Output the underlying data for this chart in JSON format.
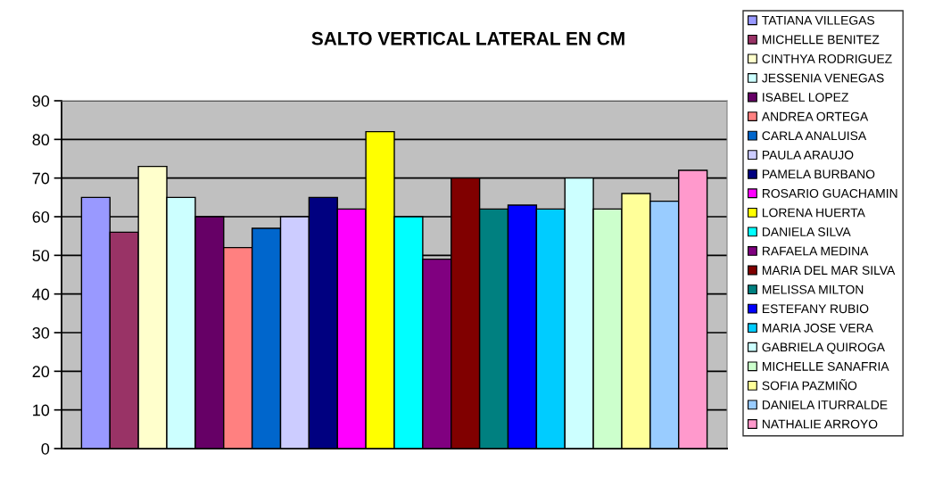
{
  "chart_data": {
    "type": "bar",
    "title": "SALTO VERTICAL LATERAL EN CM",
    "categories": [
      null
    ],
    "ylim": [
      0,
      90
    ],
    "yticks": [
      0,
      10,
      20,
      30,
      40,
      50,
      60,
      70,
      80,
      90
    ],
    "grid": "y",
    "legend": "right",
    "series": [
      {
        "name": "TATIANA VILLEGAS",
        "color": "#9999ff",
        "values": [
          65
        ]
      },
      {
        "name": "MICHELLE BENITEZ",
        "color": "#993366",
        "values": [
          56
        ]
      },
      {
        "name": "CINTHYA RODRIGUEZ",
        "color": "#ffffcc",
        "values": [
          73
        ]
      },
      {
        "name": "JESSENIA VENEGAS",
        "color": "#ccffff",
        "values": [
          65
        ]
      },
      {
        "name": "ISABEL LOPEZ",
        "color": "#660066",
        "values": [
          60
        ]
      },
      {
        "name": "ANDREA ORTEGA",
        "color": "#ff8080",
        "values": [
          52
        ]
      },
      {
        "name": "CARLA ANALUISA",
        "color": "#0066cc",
        "values": [
          57
        ]
      },
      {
        "name": "PAULA ARAUJO",
        "color": "#ccccff",
        "values": [
          60
        ]
      },
      {
        "name": "PAMELA BURBANO",
        "color": "#000080",
        "values": [
          65
        ]
      },
      {
        "name": "ROSARIO GUACHAMIN",
        "color": "#ff00ff",
        "values": [
          62
        ]
      },
      {
        "name": "LORENA HUERTA",
        "color": "#ffff00",
        "values": [
          82
        ]
      },
      {
        "name": "DANIELA SILVA",
        "color": "#00ffff",
        "values": [
          60
        ]
      },
      {
        "name": "RAFAELA MEDINA",
        "color": "#800080",
        "values": [
          49
        ]
      },
      {
        "name": "MARIA DEL MAR SILVA",
        "color": "#800000",
        "values": [
          70
        ]
      },
      {
        "name": "MELISSA MILTON",
        "color": "#008080",
        "values": [
          62
        ]
      },
      {
        "name": "ESTEFANY RUBIO",
        "color": "#0000ff",
        "values": [
          63
        ]
      },
      {
        "name": "MARIA JOSE VERA",
        "color": "#00ccff",
        "values": [
          62
        ]
      },
      {
        "name": "GABRIELA QUIROGA",
        "color": "#ccffff",
        "values": [
          70
        ]
      },
      {
        "name": "MICHELLE SANAFRIA",
        "color": "#ccffcc",
        "values": [
          62
        ]
      },
      {
        "name": "SOFIA PAZMIÑO",
        "color": "#ffff99",
        "values": [
          66
        ]
      },
      {
        "name": "DANIELA ITURRALDE",
        "color": "#99ccff",
        "values": [
          64
        ]
      },
      {
        "name": "NATHALIE ARROYO",
        "color": "#ff99cc",
        "values": [
          72
        ]
      }
    ]
  }
}
